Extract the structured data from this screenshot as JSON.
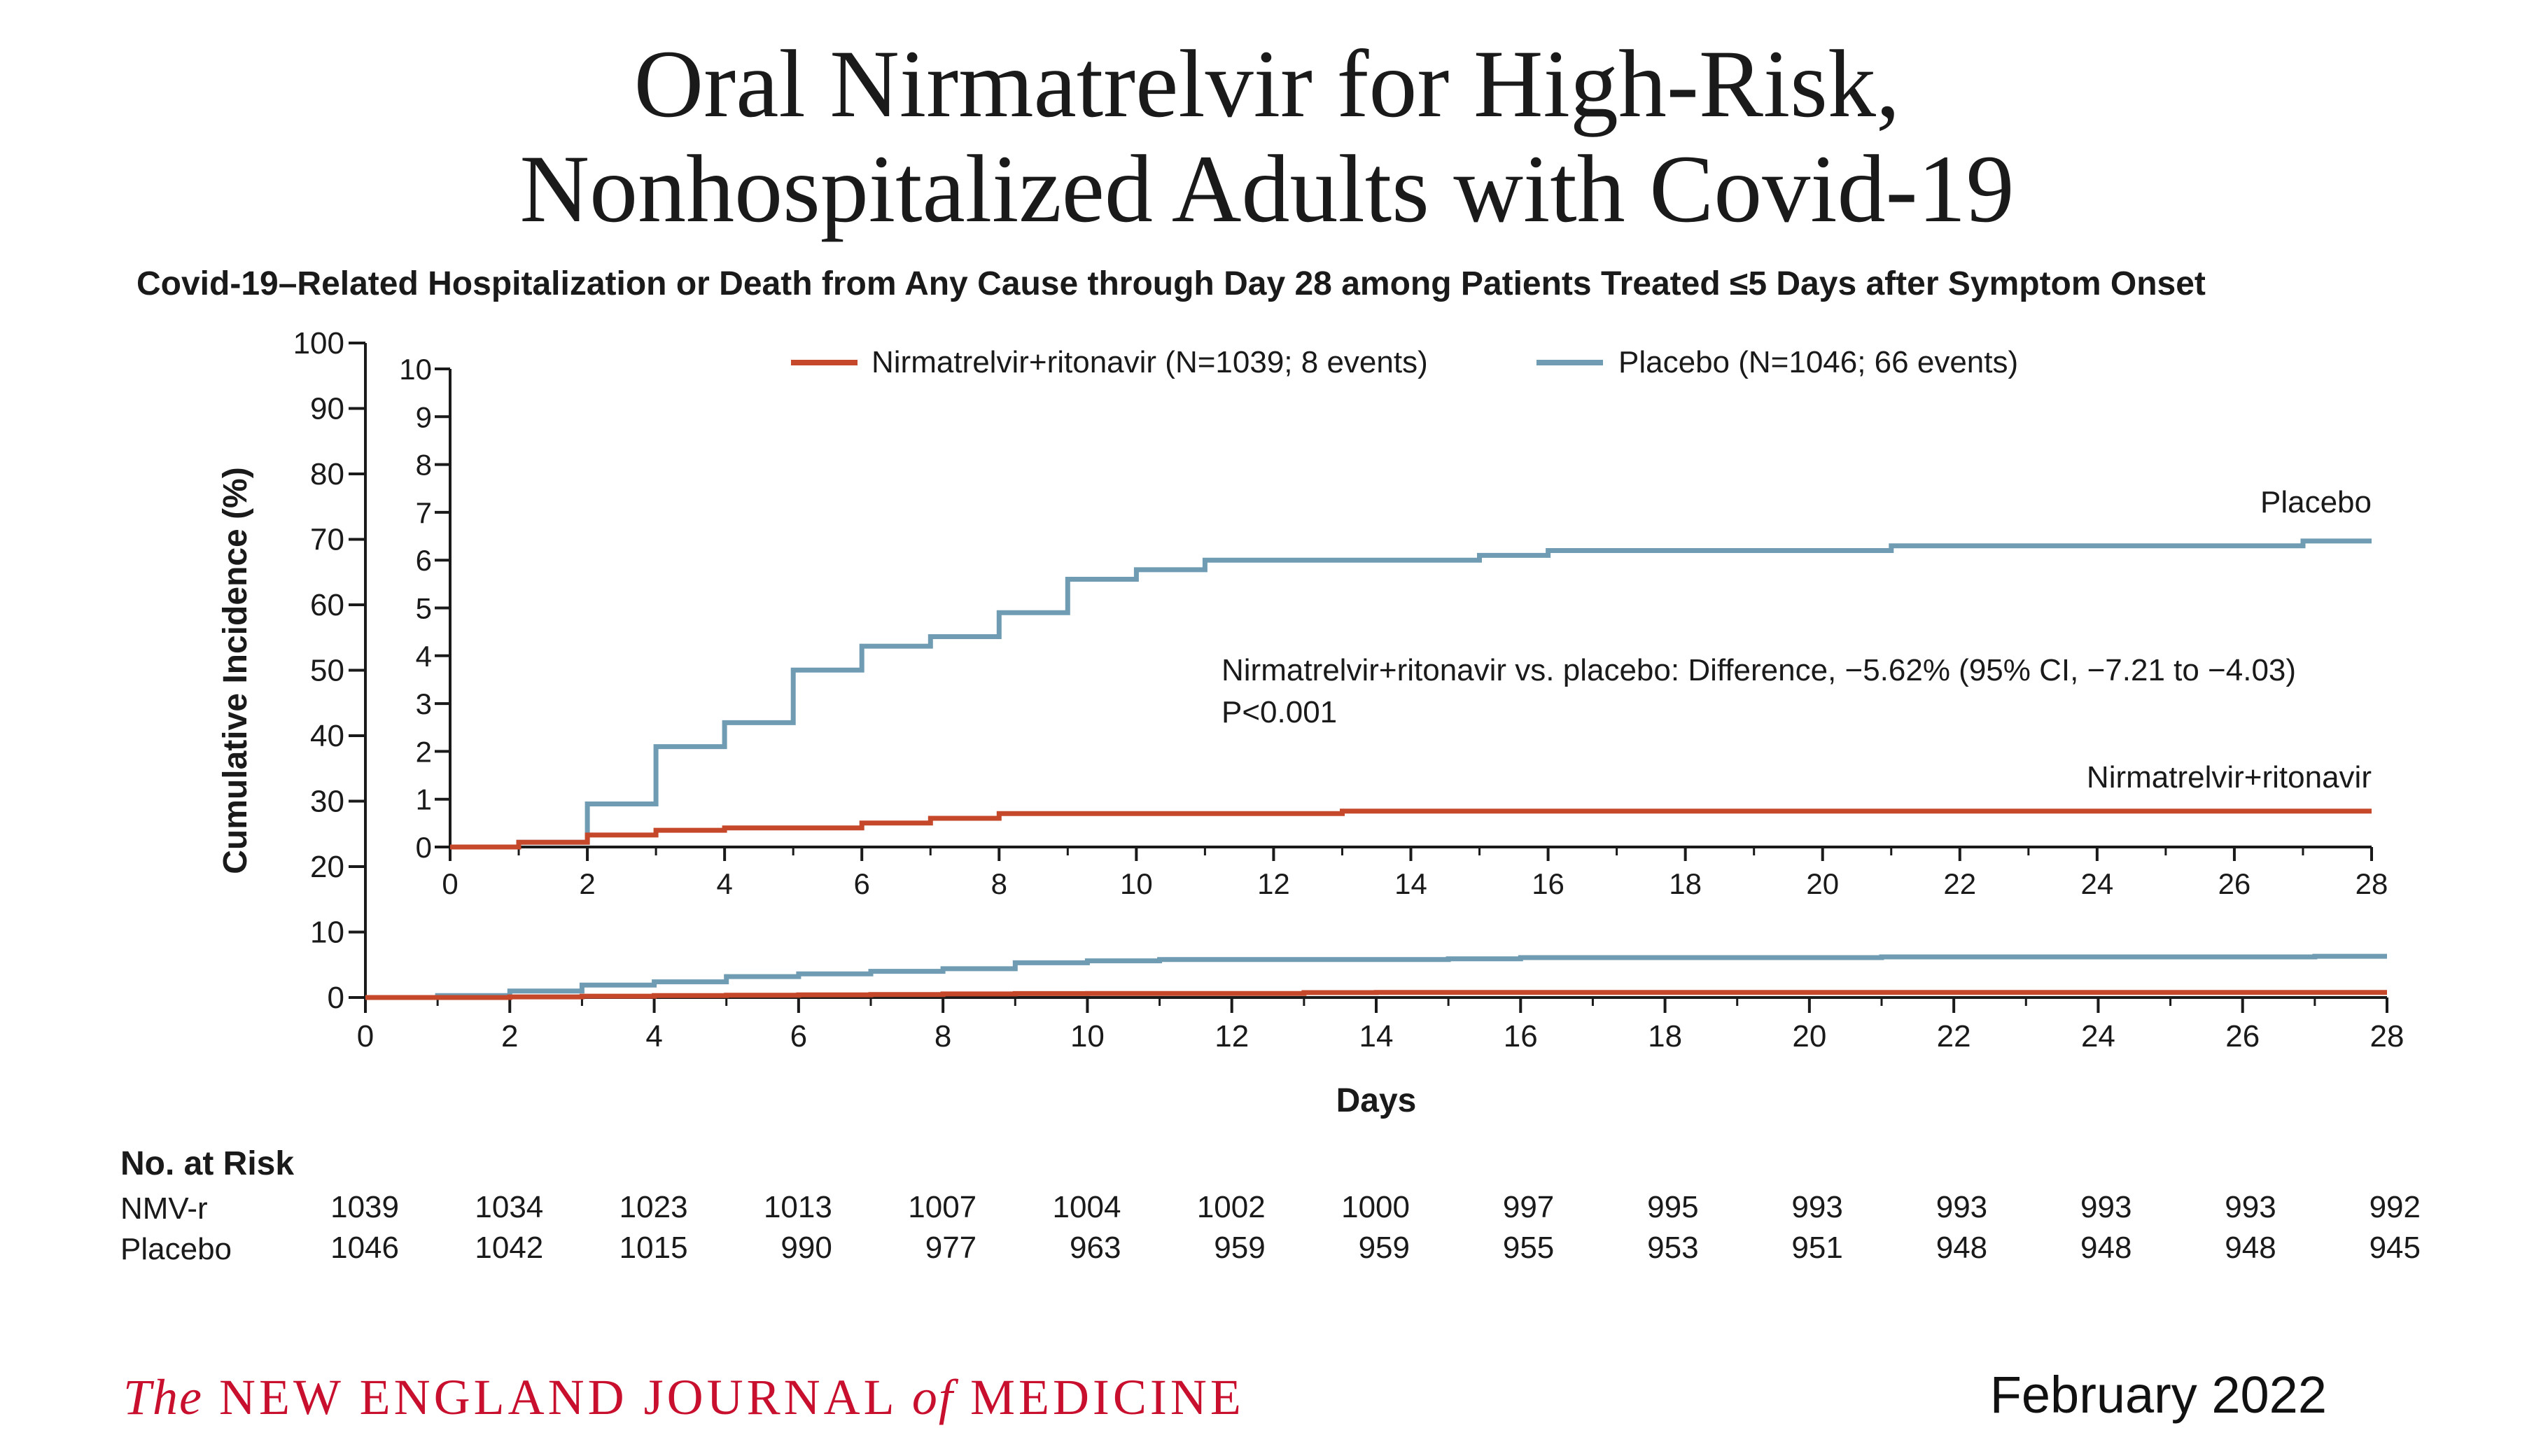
{
  "title_line1": "Oral Nirmatrelvir for High-Risk,",
  "title_line2": "Nonhospitalized Adults with Covid-19",
  "subtitle": "Covid-19–Related Hospitalization or Death from Any Cause through Day 28 among Patients Treated ≤5 Days after Symptom Onset",
  "chart_data": [
    {
      "type": "line",
      "panel": "main",
      "xlabel": "Days",
      "ylabel": "Cumulative Incidence (%)",
      "xlim": [
        0,
        28
      ],
      "ylim": [
        0,
        100
      ],
      "x_ticks": [
        0,
        2,
        4,
        6,
        8,
        10,
        12,
        14,
        16,
        18,
        20,
        22,
        24,
        26,
        28
      ],
      "y_ticks": [
        0,
        10,
        20,
        30,
        40,
        50,
        60,
        70,
        80,
        90,
        100
      ],
      "legend_position": "top",
      "series": [
        {
          "name": "Nirmatrelvir+ritonavir (N=1039; 8 events)",
          "color": "#c5482a",
          "x": [
            0,
            1,
            2,
            3,
            4,
            5,
            6,
            7,
            8,
            9,
            10,
            11,
            12,
            13,
            14,
            28
          ],
          "y": [
            0,
            0,
            0.1,
            0.2,
            0.3,
            0.35,
            0.4,
            0.45,
            0.55,
            0.6,
            0.62,
            0.62,
            0.62,
            0.75,
            0.78,
            0.78
          ]
        },
        {
          "name": "Placebo (N=1046; 66 events)",
          "color": "#6f9cb2",
          "x": [
            0,
            1,
            2,
            3,
            4,
            5,
            6,
            7,
            8,
            9,
            10,
            11,
            12,
            13,
            14,
            15,
            16,
            17,
            18,
            19,
            20,
            21,
            22,
            23,
            24,
            25,
            26,
            27,
            28
          ],
          "y": [
            0,
            0.3,
            1.0,
            1.9,
            2.4,
            3.2,
            3.6,
            4.0,
            4.4,
            5.3,
            5.6,
            5.8,
            5.8,
            5.8,
            5.8,
            5.9,
            6.1,
            6.1,
            6.1,
            6.1,
            6.1,
            6.2,
            6.2,
            6.2,
            6.2,
            6.2,
            6.2,
            6.3,
            6.3
          ]
        }
      ]
    },
    {
      "type": "line",
      "panel": "inset",
      "xlim": [
        0,
        28
      ],
      "ylim": [
        0,
        10
      ],
      "x_ticks": [
        0,
        2,
        4,
        6,
        8,
        10,
        12,
        14,
        16,
        18,
        20,
        22,
        24,
        26,
        28
      ],
      "y_ticks": [
        0,
        1,
        2,
        3,
        4,
        5,
        6,
        7,
        8,
        9,
        10
      ],
      "series_labels": {
        "placebo": "Placebo",
        "nmv": "Nirmatrelvir+ritonavir"
      },
      "annotation_line1": "Nirmatrelvir+ritonavir vs. placebo: Difference, −5.62% (95% CI, −7.21 to −4.03)",
      "annotation_line2": "P<0.001",
      "series": [
        {
          "name": "Nirmatrelvir+ritonavir",
          "color": "#c5482a",
          "x": [
            0,
            1,
            2,
            3,
            4,
            6,
            7,
            8,
            13,
            28
          ],
          "y": [
            0,
            0.1,
            0.25,
            0.35,
            0.4,
            0.5,
            0.6,
            0.7,
            0.75,
            0.75
          ]
        },
        {
          "name": "Placebo",
          "color": "#6f9cb2",
          "x": [
            0,
            1,
            2,
            3,
            4,
            5,
            6,
            7,
            8,
            9,
            10,
            11,
            15,
            16,
            21,
            27,
            28
          ],
          "y": [
            0,
            0.1,
            0.9,
            2.1,
            2.6,
            3.7,
            4.2,
            4.4,
            4.9,
            5.6,
            5.8,
            6.0,
            6.1,
            6.2,
            6.3,
            6.4,
            6.4
          ]
        }
      ]
    }
  ],
  "risk_table": {
    "title": "No. at Risk",
    "rows": [
      {
        "label": "NMV-r",
        "values": [
          "1039",
          "1034",
          "1023",
          "1013",
          "1007",
          "1004",
          "1002",
          "1000",
          "997",
          "995",
          "993",
          "993",
          "993",
          "993",
          "992"
        ]
      },
      {
        "label": "Placebo",
        "values": [
          "1046",
          "1042",
          "1015",
          "990",
          "977",
          "963",
          "959",
          "959",
          "955",
          "953",
          "951",
          "948",
          "948",
          "948",
          "945"
        ]
      }
    ]
  },
  "footer": {
    "the": "The",
    "journal_part1": "NEW ENGLAND JOURNAL",
    "of": "of",
    "journal_part2": "MEDICINE",
    "date": "February 2022"
  },
  "colors": {
    "nirmatrelvir": "#c5482a",
    "placebo": "#6f9cb2",
    "journal_red": "#c8102e"
  }
}
